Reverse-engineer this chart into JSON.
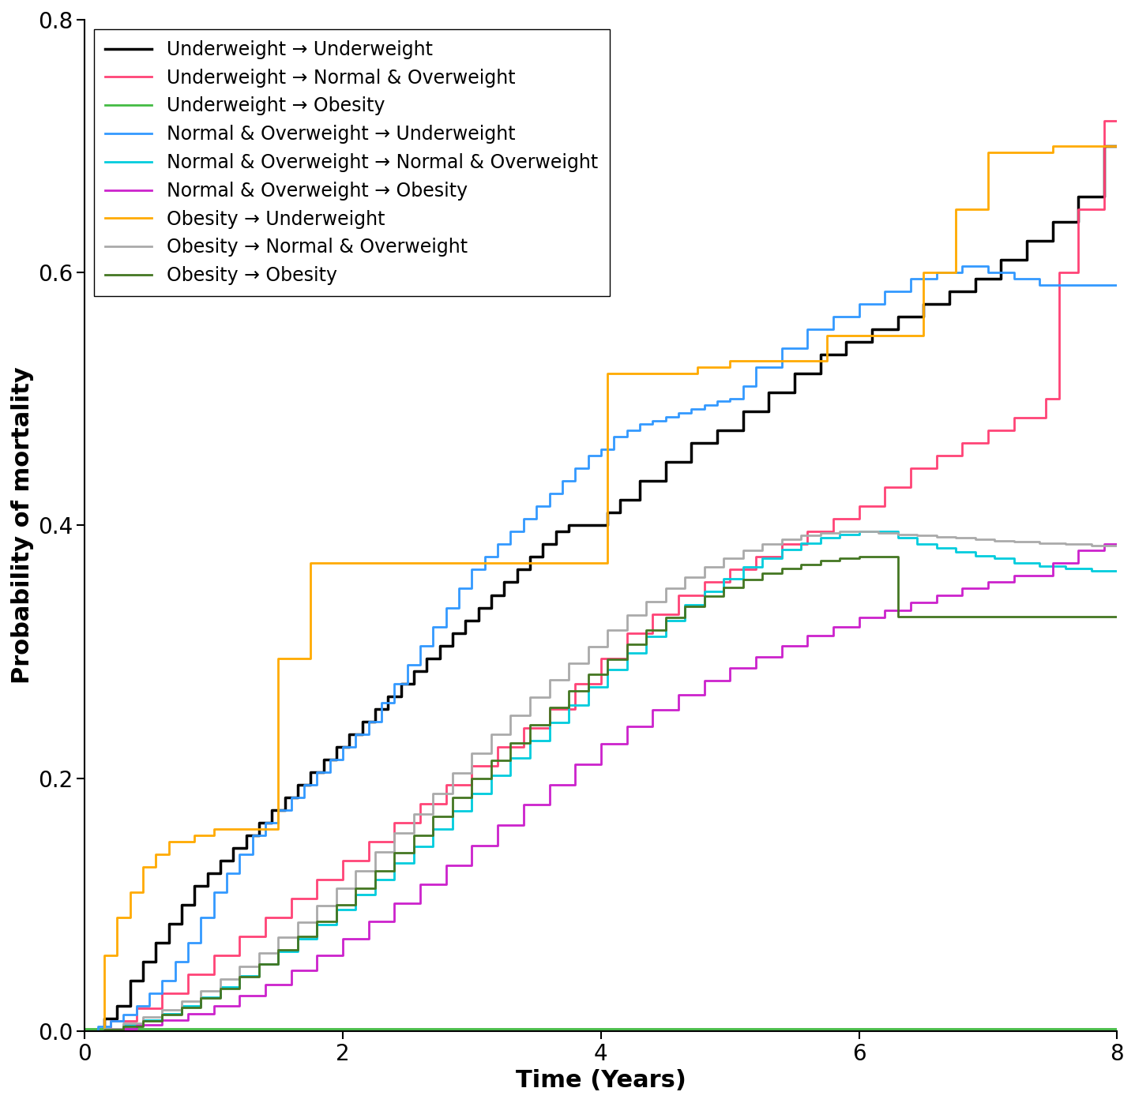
{
  "xlabel": "Time (Years)",
  "ylabel": "Probability of mortality",
  "xlim": [
    0,
    8
  ],
  "ylim": [
    0.0,
    0.8
  ],
  "xticks": [
    0,
    2,
    4,
    6,
    8
  ],
  "yticks": [
    0.0,
    0.2,
    0.4,
    0.6,
    0.8
  ],
  "background_color": "#ffffff",
  "curves": [
    {
      "label": "Underweight → Underweight",
      "color": "#000000",
      "linewidth": 2.5,
      "x": [
        0,
        0.15,
        0.25,
        0.35,
        0.45,
        0.55,
        0.65,
        0.75,
        0.85,
        0.95,
        1.05,
        1.15,
        1.25,
        1.35,
        1.45,
        1.55,
        1.65,
        1.75,
        1.85,
        1.95,
        2.05,
        2.15,
        2.25,
        2.35,
        2.45,
        2.55,
        2.65,
        2.75,
        2.85,
        2.95,
        3.05,
        3.15,
        3.25,
        3.35,
        3.45,
        3.55,
        3.65,
        3.75,
        3.85,
        3.95,
        4.05,
        4.15,
        4.3,
        4.5,
        4.7,
        4.9,
        5.1,
        5.3,
        5.5,
        5.7,
        5.9,
        6.1,
        6.3,
        6.5,
        6.7,
        6.9,
        7.1,
        7.3,
        7.5,
        7.7,
        7.9,
        8.0
      ],
      "y": [
        0,
        0.01,
        0.02,
        0.04,
        0.055,
        0.07,
        0.085,
        0.1,
        0.115,
        0.125,
        0.135,
        0.145,
        0.155,
        0.165,
        0.175,
        0.185,
        0.195,
        0.205,
        0.215,
        0.225,
        0.235,
        0.245,
        0.255,
        0.265,
        0.275,
        0.285,
        0.295,
        0.305,
        0.315,
        0.325,
        0.335,
        0.345,
        0.355,
        0.365,
        0.375,
        0.385,
        0.395,
        0.4,
        0.4,
        0.4,
        0.41,
        0.42,
        0.435,
        0.45,
        0.465,
        0.475,
        0.49,
        0.505,
        0.52,
        0.535,
        0.545,
        0.555,
        0.565,
        0.575,
        0.585,
        0.595,
        0.61,
        0.625,
        0.64,
        0.66,
        0.7,
        0.7
      ]
    },
    {
      "label": "Underweight → Normal & Overweight",
      "color": "#ff4477",
      "linewidth": 2.0,
      "x": [
        0,
        0.2,
        0.4,
        0.6,
        0.8,
        1.0,
        1.2,
        1.4,
        1.6,
        1.8,
        2.0,
        2.2,
        2.4,
        2.6,
        2.8,
        3.0,
        3.2,
        3.4,
        3.6,
        3.8,
        4.0,
        4.2,
        4.4,
        4.6,
        4.8,
        5.0,
        5.2,
        5.4,
        5.6,
        5.8,
        6.0,
        6.2,
        6.4,
        6.6,
        6.8,
        7.0,
        7.2,
        7.45,
        7.55,
        7.7,
        7.9,
        8.0
      ],
      "y": [
        0,
        0.008,
        0.018,
        0.03,
        0.045,
        0.06,
        0.075,
        0.09,
        0.105,
        0.12,
        0.135,
        0.15,
        0.165,
        0.18,
        0.195,
        0.21,
        0.225,
        0.24,
        0.255,
        0.275,
        0.295,
        0.315,
        0.33,
        0.345,
        0.355,
        0.365,
        0.375,
        0.385,
        0.395,
        0.405,
        0.415,
        0.43,
        0.445,
        0.455,
        0.465,
        0.475,
        0.485,
        0.5,
        0.6,
        0.65,
        0.72,
        0.72
      ]
    },
    {
      "label": "Underweight → Obesity",
      "color": "#44bb44",
      "linewidth": 2.0,
      "x": [
        0,
        8.0
      ],
      "y": [
        0.002,
        0.002
      ]
    },
    {
      "label": "Normal & Overweight → Underweight",
      "color": "#3399ff",
      "linewidth": 2.0,
      "x": [
        0,
        0.1,
        0.2,
        0.3,
        0.4,
        0.5,
        0.6,
        0.7,
        0.8,
        0.9,
        1.0,
        1.1,
        1.2,
        1.3,
        1.4,
        1.5,
        1.6,
        1.7,
        1.8,
        1.9,
        2.0,
        2.1,
        2.2,
        2.3,
        2.4,
        2.5,
        2.6,
        2.7,
        2.8,
        2.9,
        3.0,
        3.1,
        3.2,
        3.3,
        3.4,
        3.5,
        3.6,
        3.7,
        3.8,
        3.9,
        4.0,
        4.1,
        4.2,
        4.3,
        4.4,
        4.5,
        4.6,
        4.7,
        4.8,
        4.9,
        5.0,
        5.1,
        5.2,
        5.4,
        5.6,
        5.8,
        6.0,
        6.2,
        6.4,
        6.6,
        6.8,
        7.0,
        7.2,
        7.4,
        7.6,
        7.8,
        8.0
      ],
      "y": [
        0,
        0.004,
        0.008,
        0.013,
        0.02,
        0.03,
        0.04,
        0.055,
        0.07,
        0.09,
        0.11,
        0.125,
        0.14,
        0.155,
        0.165,
        0.175,
        0.185,
        0.195,
        0.205,
        0.215,
        0.225,
        0.235,
        0.245,
        0.26,
        0.275,
        0.29,
        0.305,
        0.32,
        0.335,
        0.35,
        0.365,
        0.375,
        0.385,
        0.395,
        0.405,
        0.415,
        0.425,
        0.435,
        0.445,
        0.455,
        0.46,
        0.47,
        0.475,
        0.48,
        0.483,
        0.486,
        0.489,
        0.492,
        0.495,
        0.498,
        0.5,
        0.51,
        0.525,
        0.54,
        0.555,
        0.565,
        0.575,
        0.585,
        0.595,
        0.6,
        0.605,
        0.6,
        0.595,
        0.59,
        0.59,
        0.59,
        0.59
      ]
    },
    {
      "label": "Normal & Overweight → Normal & Overweight",
      "color": "#00ccdd",
      "linewidth": 2.0,
      "x": [
        0,
        0.15,
        0.3,
        0.45,
        0.6,
        0.75,
        0.9,
        1.05,
        1.2,
        1.35,
        1.5,
        1.65,
        1.8,
        1.95,
        2.1,
        2.25,
        2.4,
        2.55,
        2.7,
        2.85,
        3.0,
        3.15,
        3.3,
        3.45,
        3.6,
        3.75,
        3.9,
        4.05,
        4.2,
        4.35,
        4.5,
        4.65,
        4.8,
        4.95,
        5.1,
        5.25,
        5.4,
        5.55,
        5.7,
        5.85,
        6.0,
        6.15,
        6.3,
        6.45,
        6.6,
        6.75,
        6.9,
        7.05,
        7.2,
        7.4,
        7.6,
        7.8,
        8.0
      ],
      "y": [
        0,
        0.002,
        0.005,
        0.009,
        0.014,
        0.02,
        0.027,
        0.035,
        0.044,
        0.053,
        0.063,
        0.073,
        0.084,
        0.096,
        0.108,
        0.12,
        0.133,
        0.146,
        0.16,
        0.174,
        0.188,
        0.202,
        0.216,
        0.23,
        0.244,
        0.258,
        0.272,
        0.286,
        0.299,
        0.312,
        0.325,
        0.337,
        0.348,
        0.358,
        0.367,
        0.374,
        0.381,
        0.386,
        0.39,
        0.393,
        0.395,
        0.395,
        0.39,
        0.385,
        0.382,
        0.379,
        0.376,
        0.374,
        0.37,
        0.368,
        0.366,
        0.364,
        0.364
      ]
    },
    {
      "label": "Normal & Overweight → Obesity",
      "color": "#cc22cc",
      "linewidth": 2.0,
      "x": [
        0,
        0.2,
        0.4,
        0.6,
        0.8,
        1.0,
        1.2,
        1.4,
        1.6,
        1.8,
        2.0,
        2.2,
        2.4,
        2.6,
        2.8,
        3.0,
        3.2,
        3.4,
        3.6,
        3.8,
        4.0,
        4.2,
        4.4,
        4.6,
        4.8,
        5.0,
        5.2,
        5.4,
        5.6,
        5.8,
        6.0,
        6.2,
        6.4,
        6.6,
        6.8,
        7.0,
        7.2,
        7.5,
        7.7,
        7.9,
        8.0
      ],
      "y": [
        0,
        0.002,
        0.005,
        0.009,
        0.014,
        0.02,
        0.028,
        0.037,
        0.048,
        0.06,
        0.073,
        0.087,
        0.101,
        0.116,
        0.131,
        0.147,
        0.163,
        0.179,
        0.195,
        0.211,
        0.227,
        0.241,
        0.254,
        0.266,
        0.277,
        0.287,
        0.296,
        0.305,
        0.313,
        0.32,
        0.327,
        0.333,
        0.339,
        0.345,
        0.35,
        0.355,
        0.36,
        0.37,
        0.38,
        0.385,
        0.385
      ]
    },
    {
      "label": "Obesity → Underweight",
      "color": "#ffaa00",
      "linewidth": 2.0,
      "x": [
        0,
        0.15,
        0.25,
        0.35,
        0.45,
        0.55,
        0.65,
        0.85,
        1.0,
        1.5,
        1.75,
        2.0,
        2.5,
        3.0,
        3.5,
        3.95,
        4.05,
        4.5,
        4.75,
        5.0,
        5.5,
        5.75,
        6.0,
        6.5,
        6.75,
        7.0,
        7.5,
        7.75,
        8.0
      ],
      "y": [
        0,
        0.06,
        0.09,
        0.11,
        0.13,
        0.14,
        0.15,
        0.155,
        0.16,
        0.295,
        0.37,
        0.37,
        0.37,
        0.37,
        0.37,
        0.37,
        0.52,
        0.52,
        0.525,
        0.53,
        0.53,
        0.55,
        0.55,
        0.6,
        0.65,
        0.695,
        0.7,
        0.7,
        0.7
      ]
    },
    {
      "label": "Obesity → Normal & Overweight",
      "color": "#aaaaaa",
      "linewidth": 2.0,
      "x": [
        0,
        0.15,
        0.3,
        0.45,
        0.6,
        0.75,
        0.9,
        1.05,
        1.2,
        1.35,
        1.5,
        1.65,
        1.8,
        1.95,
        2.1,
        2.25,
        2.4,
        2.55,
        2.7,
        2.85,
        3.0,
        3.15,
        3.3,
        3.45,
        3.6,
        3.75,
        3.9,
        4.05,
        4.2,
        4.35,
        4.5,
        4.65,
        4.8,
        4.95,
        5.1,
        5.25,
        5.4,
        5.55,
        5.7,
        5.85,
        6.0,
        6.15,
        6.3,
        6.45,
        6.6,
        6.75,
        6.9,
        7.05,
        7.2,
        7.4,
        7.6,
        7.8,
        8.0
      ],
      "y": [
        0,
        0.002,
        0.006,
        0.011,
        0.017,
        0.024,
        0.032,
        0.041,
        0.051,
        0.062,
        0.074,
        0.086,
        0.099,
        0.113,
        0.127,
        0.142,
        0.157,
        0.172,
        0.188,
        0.204,
        0.22,
        0.235,
        0.25,
        0.264,
        0.278,
        0.291,
        0.304,
        0.317,
        0.329,
        0.34,
        0.35,
        0.359,
        0.367,
        0.374,
        0.38,
        0.385,
        0.389,
        0.392,
        0.394,
        0.395,
        0.395,
        0.394,
        0.393,
        0.392,
        0.391,
        0.39,
        0.389,
        0.388,
        0.387,
        0.386,
        0.385,
        0.384,
        0.384
      ]
    },
    {
      "label": "Obesity → Obesity",
      "color": "#447722",
      "linewidth": 2.0,
      "x": [
        0,
        0.15,
        0.3,
        0.45,
        0.6,
        0.75,
        0.9,
        1.05,
        1.2,
        1.35,
        1.5,
        1.65,
        1.8,
        1.95,
        2.1,
        2.25,
        2.4,
        2.55,
        2.7,
        2.85,
        3.0,
        3.15,
        3.3,
        3.45,
        3.6,
        3.75,
        3.9,
        4.05,
        4.2,
        4.35,
        4.5,
        4.65,
        4.8,
        4.95,
        5.1,
        5.25,
        5.4,
        5.55,
        5.7,
        5.85,
        6.0,
        6.15,
        6.3,
        6.45,
        6.6,
        6.75,
        6.9,
        7.05,
        7.2,
        7.4,
        7.6,
        7.8,
        8.0
      ],
      "y": [
        0,
        0.001,
        0.004,
        0.008,
        0.013,
        0.019,
        0.026,
        0.034,
        0.043,
        0.053,
        0.064,
        0.075,
        0.087,
        0.1,
        0.113,
        0.127,
        0.141,
        0.155,
        0.17,
        0.185,
        0.2,
        0.214,
        0.228,
        0.242,
        0.256,
        0.269,
        0.282,
        0.294,
        0.306,
        0.317,
        0.327,
        0.336,
        0.344,
        0.351,
        0.357,
        0.362,
        0.366,
        0.369,
        0.372,
        0.374,
        0.375,
        0.375,
        0.328,
        0.328,
        0.328,
        0.328,
        0.328,
        0.328,
        0.328,
        0.328,
        0.328,
        0.328,
        0.328
      ]
    }
  ],
  "legend_fontsize": 17,
  "axis_fontsize": 22,
  "tick_fontsize": 20
}
